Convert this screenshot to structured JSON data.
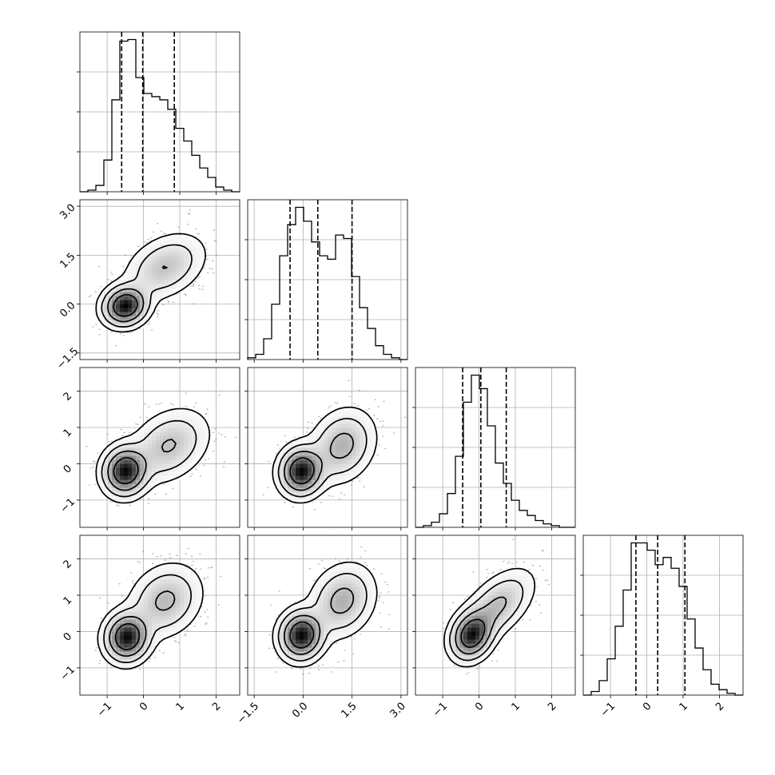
{
  "chart_data": {
    "type": "corner",
    "parameter_count": 4,
    "grid": true,
    "colors": {
      "histogram": "#000000",
      "quantile_line": "#000000",
      "contour": "#000000",
      "density": "#000000",
      "gridline": "#b0b0b0"
    },
    "quantiles": [
      0.16,
      0.5,
      0.84
    ],
    "axes": [
      {
        "range": [
          -1.75,
          2.65
        ],
        "ticks": [
          -1,
          0,
          1,
          2
        ],
        "tick_labels": [
          "−1",
          "0",
          "1",
          "2"
        ]
      },
      {
        "range": [
          -1.7,
          3.2
        ],
        "ticks": [
          -1.5,
          0.0,
          1.5,
          3.0
        ],
        "tick_labels": [
          "−1.5",
          "0.0",
          "1.5",
          "3.0"
        ]
      },
      {
        "range": [
          -1.75,
          2.65
        ],
        "ticks": [
          -1,
          0,
          1,
          2
        ],
        "tick_labels": [
          "−1",
          "0",
          "1",
          "2"
        ]
      },
      {
        "range": [
          -1.75,
          2.65
        ],
        "ticks": [
          -1,
          0,
          1,
          2
        ],
        "tick_labels": [
          "−1",
          "0",
          "1",
          "2"
        ]
      }
    ],
    "diagonal_histograms": [
      {
        "parameter": 1,
        "bin_edges": [
          -1.75,
          -1.53,
          -1.31,
          -1.09,
          -0.87,
          -0.65,
          -0.43,
          -0.21,
          0.01,
          0.23,
          0.45,
          0.67,
          0.89,
          1.11,
          1.33,
          1.55,
          1.77,
          1.99,
          2.21,
          2.43,
          2.65
        ],
        "counts": [
          0,
          1,
          4,
          20,
          58,
          95,
          96,
          72,
          62,
          60,
          58,
          52,
          40,
          32,
          23,
          15,
          9,
          3,
          1,
          0
        ],
        "quantile_values": [
          -0.6,
          -0.02,
          0.85
        ]
      },
      {
        "parameter": 2,
        "bin_edges": [
          -1.7,
          -1.455,
          -1.21,
          -0.965,
          -0.72,
          -0.475,
          -0.23,
          0.015,
          0.26,
          0.505,
          0.75,
          0.995,
          1.24,
          1.485,
          1.73,
          1.975,
          2.22,
          2.465,
          2.71,
          2.955,
          3.2
        ],
        "counts": [
          1,
          3,
          12,
          32,
          60,
          78,
          88,
          80,
          68,
          60,
          58,
          72,
          70,
          48,
          30,
          18,
          8,
          3,
          1,
          0
        ],
        "quantile_values": [
          -0.4,
          0.45,
          1.5
        ]
      },
      {
        "parameter": 3,
        "bin_edges": [
          -1.75,
          -1.53,
          -1.31,
          -1.09,
          -0.87,
          -0.65,
          -0.43,
          -0.21,
          0.01,
          0.23,
          0.45,
          0.67,
          0.89,
          1.11,
          1.33,
          1.55,
          1.77,
          1.99,
          2.21,
          2.43,
          2.65
        ],
        "counts": [
          0,
          1,
          3,
          8,
          20,
          42,
          74,
          90,
          82,
          60,
          38,
          26,
          16,
          10,
          7,
          4,
          2,
          1,
          0,
          0
        ],
        "quantile_values": [
          -0.45,
          0.05,
          0.75
        ]
      },
      {
        "parameter": 4,
        "bin_edges": [
          -1.75,
          -1.53,
          -1.31,
          -1.09,
          -0.87,
          -0.65,
          -0.43,
          -0.21,
          0.01,
          0.23,
          0.45,
          0.67,
          0.89,
          1.11,
          1.33,
          1.55,
          1.77,
          1.99,
          2.21,
          2.43,
          2.65
        ],
        "counts": [
          0,
          2,
          8,
          20,
          38,
          58,
          84,
          84,
          80,
          72,
          76,
          70,
          60,
          42,
          26,
          14,
          6,
          3,
          1,
          0
        ],
        "quantile_values": [
          -0.3,
          0.3,
          1.05
        ]
      }
    ],
    "joint_distributions": [
      {
        "row": 2,
        "col": 1,
        "modes": [
          {
            "x": -0.5,
            "y": -0.05,
            "sx": 0.32,
            "sy": 0.32,
            "rho": 0.1,
            "w": 0.55
          },
          {
            "x": 0.6,
            "y": 1.15,
            "sx": 0.55,
            "sy": 0.5,
            "rho": 0.35,
            "w": 0.45
          }
        ]
      },
      {
        "row": 3,
        "col": 1,
        "modes": [
          {
            "x": -0.5,
            "y": -0.2,
            "sx": 0.32,
            "sy": 0.35,
            "rho": 0.05,
            "w": 0.55
          },
          {
            "x": 0.7,
            "y": 0.5,
            "sx": 0.55,
            "sy": 0.5,
            "rho": 0.3,
            "w": 0.45
          }
        ]
      },
      {
        "row": 3,
        "col": 2,
        "modes": [
          {
            "x": -0.05,
            "y": -0.2,
            "sx": 0.35,
            "sy": 0.35,
            "rho": 0.05,
            "w": 0.55
          },
          {
            "x": 1.2,
            "y": 0.5,
            "sx": 0.5,
            "sy": 0.5,
            "rho": 0.2,
            "w": 0.45
          }
        ]
      },
      {
        "row": 4,
        "col": 1,
        "modes": [
          {
            "x": -0.45,
            "y": -0.15,
            "sx": 0.32,
            "sy": 0.35,
            "rho": 0.05,
            "w": 0.55
          },
          {
            "x": 0.6,
            "y": 0.85,
            "sx": 0.5,
            "sy": 0.5,
            "rho": 0.2,
            "w": 0.45
          }
        ]
      },
      {
        "row": 4,
        "col": 2,
        "modes": [
          {
            "x": -0.05,
            "y": -0.1,
            "sx": 0.35,
            "sy": 0.35,
            "rho": 0.05,
            "w": 0.55
          },
          {
            "x": 1.2,
            "y": 0.85,
            "sx": 0.5,
            "sy": 0.5,
            "rho": 0.2,
            "w": 0.45
          }
        ]
      },
      {
        "row": 4,
        "col": 3,
        "modes": [
          {
            "x": -0.2,
            "y": -0.1,
            "sx": 0.3,
            "sy": 0.35,
            "rho": 0.2,
            "w": 0.55
          },
          {
            "x": 0.5,
            "y": 0.7,
            "sx": 0.5,
            "sy": 0.5,
            "rho": 0.55,
            "w": 0.45
          }
        ]
      }
    ],
    "contour_levels": [
      "1-sigma",
      "1.5-sigma",
      "2-sigma",
      "2.5-sigma"
    ]
  }
}
